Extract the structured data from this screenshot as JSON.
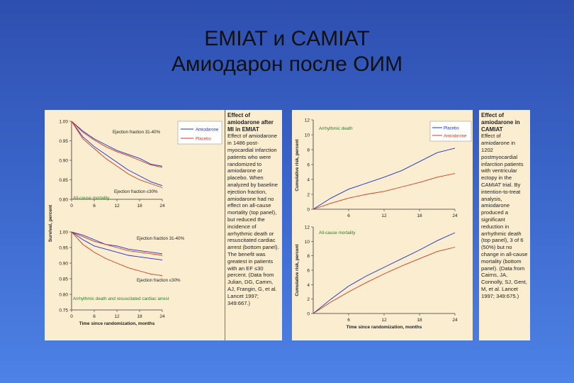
{
  "slide": {
    "title_line1": "EMIAT и CAMIAT",
    "title_line2": "Амиодарон после ОИМ"
  },
  "colors": {
    "placebo_left": "#d23a1f",
    "amiodarone_left": "#1f2fd0",
    "placebo_right": "#1f2fd0",
    "amiodarone_right": "#d23a1f",
    "green_text": "#2a7a2a"
  },
  "left_text": {
    "heading": "Effect of amiodarone after MI in EMIAT",
    "body": "Effect of amiodarone in 1486 post-myocardial infarction patients who were randomized to amiodarone or placebo. When analyzed by baseline ejection fraction, amiodarone had no effect on all-cause mortality (top panel), but reduced the incidence of arrhythmic death or resuscitated cardiac arrest (bottom panel). The benefit was greatest in patients with an EF ≤30 percent. (Data from Julian, DG, Camm, AJ, Frangin, G, et al. Lancet 1997; 349:667.)"
  },
  "right_text": {
    "heading": "Effect of amiodarone in CAMIAT",
    "body": "Effect of amiodarone in 1202 postmyocardial infarction patients with ventricular ectopy in the CAMIAT trial. By intention-to-treat analysis, amiodarone produced a significant reduction in arrhythmic death (top panel), 3 of 6 (50%) but no change in all-cause mortality (bottom panel). (Data from Cairns, JA, Connolly, SJ, Gent, M, et al. Lancet 1997; 349:675.)"
  },
  "chart_data": [
    {
      "type": "line",
      "title": "",
      "ylabel": "Survival, percent",
      "xlabel": "",
      "ylim": [
        0.8,
        1.0
      ],
      "yticks": [
        "1.00",
        "0.95",
        "0.90",
        "0.85",
        "0.80"
      ],
      "xticks": [
        "0",
        "6",
        "12",
        "18",
        "24"
      ],
      "xticks_visible": [
        "0",
        "6",
        "12",
        "18",
        "24"
      ],
      "panel_label": "All-cause mortality",
      "legend": [
        "Amiodarone",
        "Placebo"
      ],
      "annotations": [
        "Ejection fraction 31-40%",
        "Ejection fraction ≤30%"
      ],
      "series": [
        {
          "name": "Amiodarone",
          "group": "EF 31-40%",
          "x": [
            0,
            3,
            6,
            9,
            12,
            15,
            18,
            21,
            24
          ],
          "y": [
            1.0,
            0.975,
            0.955,
            0.94,
            0.925,
            0.915,
            0.905,
            0.89,
            0.885
          ]
        },
        {
          "name": "Placebo",
          "group": "EF 31-40%",
          "x": [
            0,
            3,
            6,
            9,
            12,
            15,
            18,
            21,
            24
          ],
          "y": [
            1.0,
            0.972,
            0.952,
            0.935,
            0.922,
            0.912,
            0.9,
            0.888,
            0.882
          ]
        },
        {
          "name": "Amiodarone",
          "group": "EF ≤30%",
          "x": [
            0,
            3,
            6,
            9,
            12,
            15,
            18,
            21,
            24
          ],
          "y": [
            1.0,
            0.96,
            0.935,
            0.915,
            0.895,
            0.875,
            0.86,
            0.845,
            0.835
          ]
        },
        {
          "name": "Placebo",
          "group": "EF ≤30%",
          "x": [
            0,
            3,
            6,
            9,
            12,
            15,
            18,
            21,
            24
          ],
          "y": [
            1.0,
            0.955,
            0.93,
            0.905,
            0.885,
            0.865,
            0.85,
            0.84,
            0.83
          ]
        }
      ]
    },
    {
      "type": "line",
      "title": "",
      "ylabel": "",
      "xlabel": "Time since randomization, months",
      "ylim": [
        0.75,
        1.0
      ],
      "yticks": [
        "1.00",
        "0.95",
        "0.90",
        "0.85",
        "0.80",
        "0.75"
      ],
      "xticks": [
        "0",
        "6",
        "12",
        "18",
        "24"
      ],
      "panel_label": "Arrhythmic death and resuscitated cardiac arrest",
      "annotations": [
        "Ejection fraction 31-40%",
        "Ejection fraction ≤30%"
      ],
      "series": [
        {
          "name": "Amiodarone",
          "group": "EF 31-40%",
          "x": [
            0,
            3,
            6,
            9,
            12,
            15,
            18,
            21,
            24
          ],
          "y": [
            1.0,
            0.99,
            0.975,
            0.96,
            0.955,
            0.945,
            0.94,
            0.935,
            0.93
          ]
        },
        {
          "name": "Placebo",
          "group": "EF 31-40%",
          "x": [
            0,
            3,
            6,
            9,
            12,
            15,
            18,
            21,
            24
          ],
          "y": [
            1.0,
            0.985,
            0.97,
            0.96,
            0.95,
            0.94,
            0.935,
            0.93,
            0.925
          ]
        },
        {
          "name": "Amiodarone",
          "group": "EF ≤30%",
          "x": [
            0,
            3,
            6,
            9,
            12,
            15,
            18,
            21,
            24
          ],
          "y": [
            1.0,
            0.975,
            0.955,
            0.945,
            0.935,
            0.925,
            0.92,
            0.915,
            0.91
          ]
        },
        {
          "name": "Placebo",
          "group": "EF ≤30%",
          "x": [
            0,
            3,
            6,
            9,
            12,
            15,
            18,
            21,
            24
          ],
          "y": [
            1.0,
            0.96,
            0.935,
            0.915,
            0.9,
            0.885,
            0.875,
            0.865,
            0.86
          ]
        }
      ]
    },
    {
      "type": "line",
      "title": "",
      "ylabel": "Cumulative risk, percent",
      "xlabel": "",
      "ylim": [
        0,
        12
      ],
      "yticks": [
        "12",
        "10",
        "8",
        "6",
        "4",
        "2",
        "0"
      ],
      "xticks": [
        "6",
        "12",
        "18",
        "24"
      ],
      "panel_label": "Arrhythmic death",
      "legend": [
        "Placebo",
        "Amiodarone"
      ],
      "series": [
        {
          "name": "Placebo",
          "x": [
            0,
            3,
            6,
            9,
            12,
            15,
            18,
            21,
            24
          ],
          "y": [
            0,
            1.5,
            2.7,
            3.5,
            4.3,
            5.2,
            6.4,
            7.6,
            8.2
          ]
        },
        {
          "name": "Amiodarone",
          "x": [
            0,
            3,
            6,
            9,
            12,
            15,
            18,
            21,
            24
          ],
          "y": [
            0,
            0.8,
            1.5,
            2.0,
            2.4,
            3.0,
            3.6,
            4.3,
            4.8
          ]
        }
      ]
    },
    {
      "type": "line",
      "title": "",
      "ylabel": "Cumulative risk, percent",
      "xlabel": "Time since randomization, months",
      "ylim": [
        0,
        12
      ],
      "yticks": [
        "12",
        "10",
        "8",
        "6",
        "4",
        "2",
        "0"
      ],
      "xticks": [
        "6",
        "12",
        "18",
        "24"
      ],
      "panel_label": "All-cause mortality",
      "series": [
        {
          "name": "Placebo",
          "x": [
            0,
            3,
            6,
            9,
            12,
            15,
            18,
            21,
            24
          ],
          "y": [
            0,
            2.0,
            3.8,
            5.2,
            6.4,
            7.6,
            8.8,
            10.1,
            11.2
          ]
        },
        {
          "name": "Amiodarone",
          "x": [
            0,
            3,
            6,
            9,
            12,
            15,
            18,
            21,
            24
          ],
          "y": [
            0,
            1.6,
            3.0,
            4.3,
            5.5,
            6.6,
            7.6,
            8.6,
            9.2
          ]
        }
      ]
    }
  ]
}
